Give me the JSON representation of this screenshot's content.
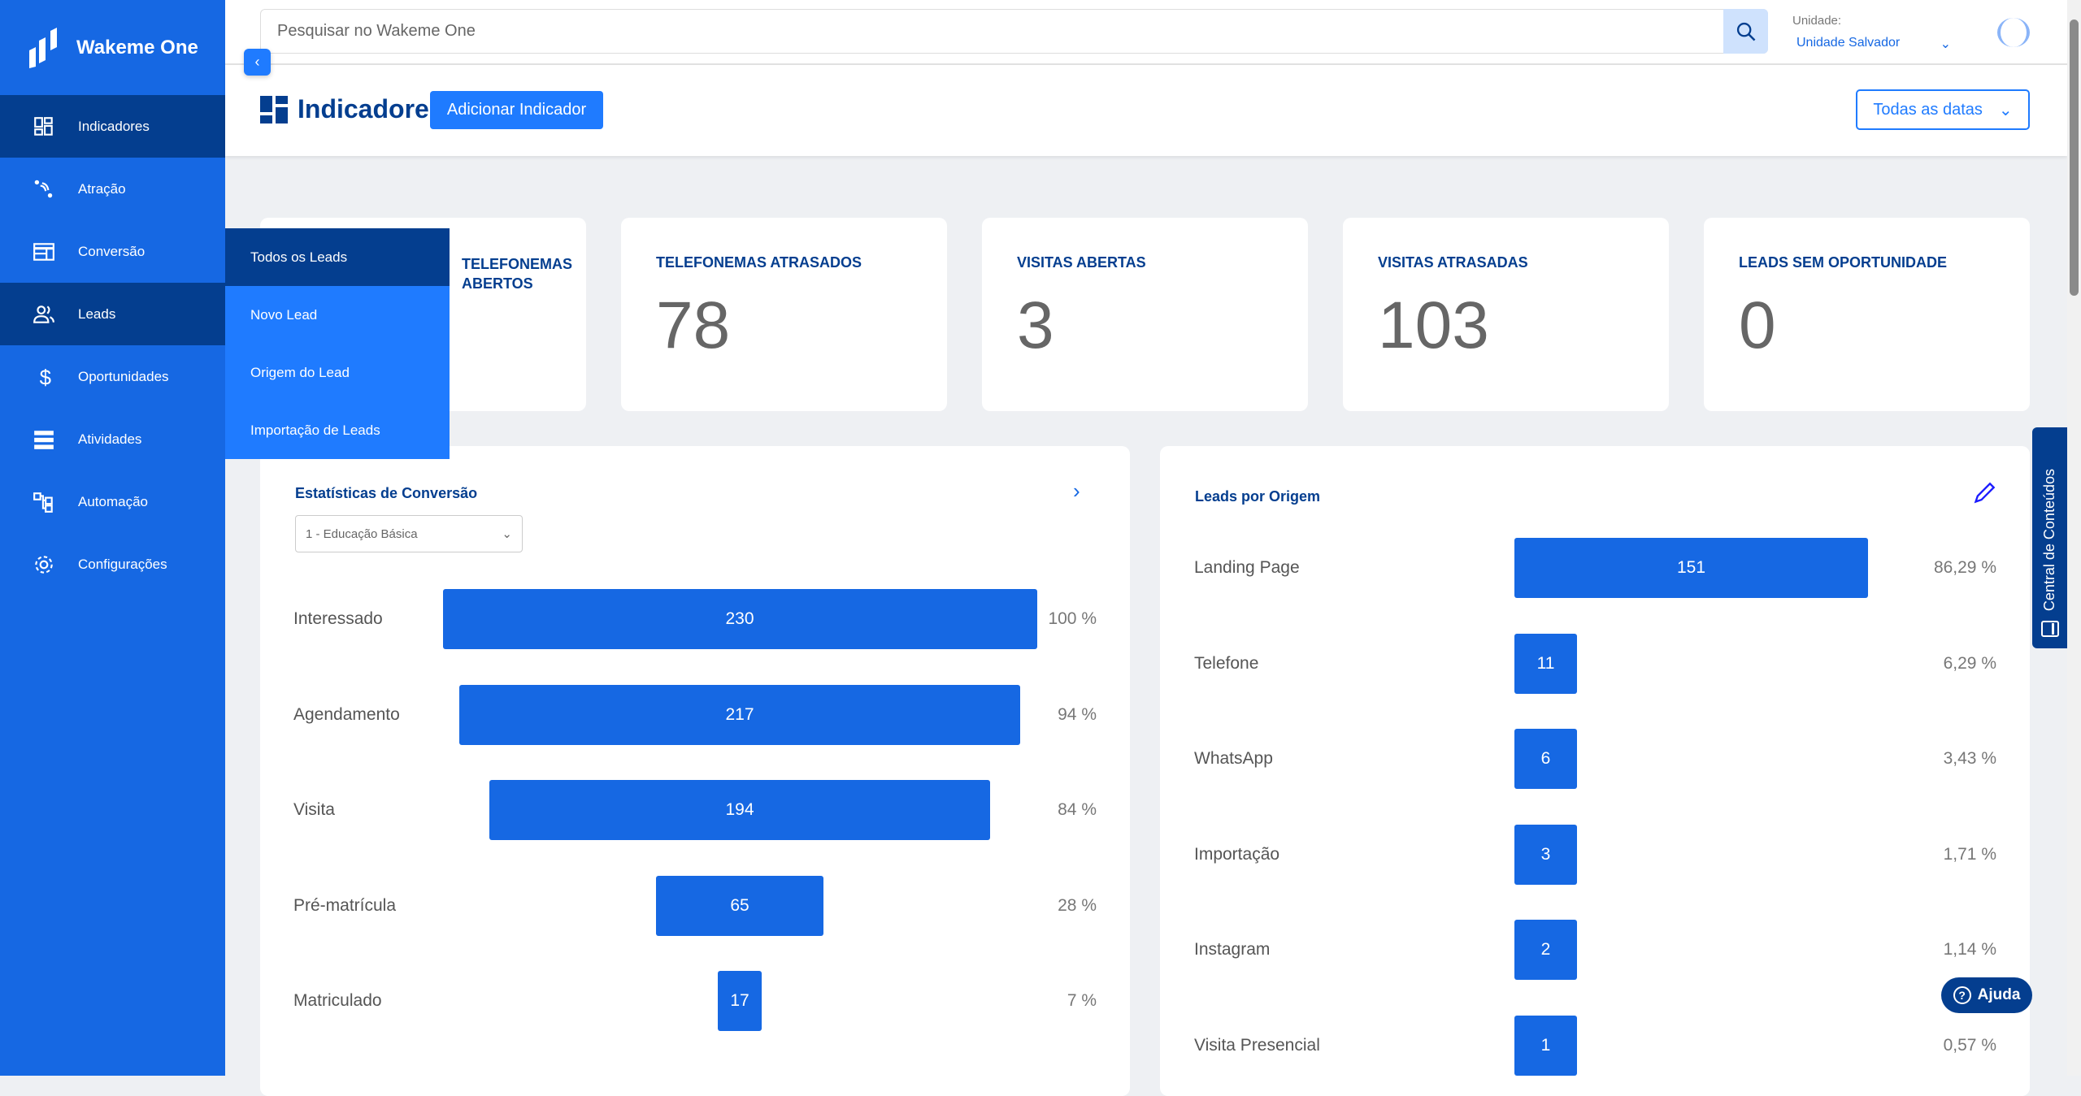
{
  "app": {
    "name": "Wakeme One"
  },
  "sidebar": {
    "items": [
      {
        "label": "Indicadores",
        "icon": "dashboard-icon"
      },
      {
        "label": "Atração",
        "icon": "attraction-icon"
      },
      {
        "label": "Conversão",
        "icon": "layout-icon"
      },
      {
        "label": "Leads",
        "icon": "users-icon"
      },
      {
        "label": "Oportunidades",
        "icon": "dollar-icon"
      },
      {
        "label": "Atividades",
        "icon": "list-icon"
      },
      {
        "label": "Automação",
        "icon": "flow-icon"
      },
      {
        "label": "Configurações",
        "icon": "gear-icon"
      }
    ]
  },
  "submenu": {
    "items": [
      "Todos os Leads",
      "Novo Lead",
      "Origem do Lead",
      "Importação de Leads"
    ]
  },
  "topbar": {
    "search_placeholder": "Pesquisar no Wakeme One",
    "unit_label": "Unidade:",
    "unit_value": "Unidade Salvador"
  },
  "header": {
    "title": "Indicadores",
    "add_button": "Adicionar Indicador",
    "dates_button": "Todas as datas"
  },
  "cards": [
    {
      "title": "TELEFONEMAS ABERTOS",
      "value": ""
    },
    {
      "title": "TELEFONEMAS ATRASADOS",
      "value": "78"
    },
    {
      "title": "VISITAS ABERTAS",
      "value": "3"
    },
    {
      "title": "VISITAS ATRASADAS",
      "value": "103"
    },
    {
      "title": "LEADS SEM OPORTUNIDADE",
      "value": "0"
    }
  ],
  "conversion": {
    "title": "Estatísticas de Conversão",
    "select": "1 - Educação Básica",
    "rows": [
      {
        "label": "Interessado",
        "value": 230,
        "pct": "100 %"
      },
      {
        "label": "Agendamento",
        "value": 217,
        "pct": "94 %"
      },
      {
        "label": "Visita",
        "value": 194,
        "pct": "84 %"
      },
      {
        "label": "Pré-matrícula",
        "value": 65,
        "pct": "28 %"
      },
      {
        "label": "Matriculado",
        "value": 17,
        "pct": "7 %"
      }
    ]
  },
  "origin": {
    "title": "Leads por Origem",
    "rows": [
      {
        "label": "Landing Page",
        "value": 151,
        "pct": "86,29 %"
      },
      {
        "label": "Telefone",
        "value": 11,
        "pct": "6,29 %"
      },
      {
        "label": "WhatsApp",
        "value": 6,
        "pct": "3,43 %"
      },
      {
        "label": "Importação",
        "value": 3,
        "pct": "1,71 %"
      },
      {
        "label": "Instagram",
        "value": 2,
        "pct": "1,14 %"
      },
      {
        "label": "Visita Presencial",
        "value": 1,
        "pct": "0,57 %"
      }
    ]
  },
  "central": "Central de Conteúdos",
  "help": "Ajuda",
  "colors": {
    "primary": "#1668e3",
    "dark": "#043e8f",
    "accent": "#1f7bff"
  }
}
